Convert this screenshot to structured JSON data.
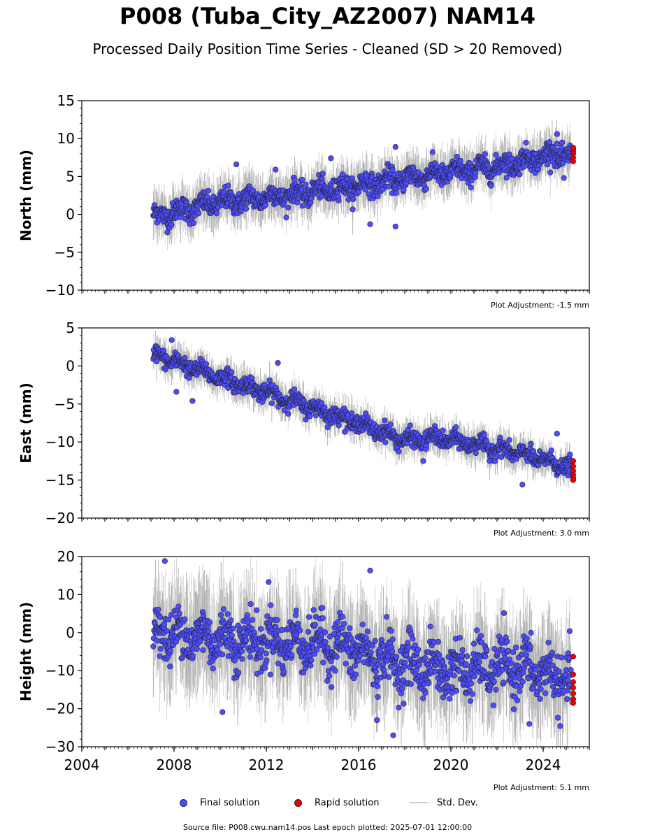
{
  "title": "P008 (Tuba_City_AZ2007) NAM14",
  "subtitle": "Processed Daily Position Time Series - Cleaned (SD > 20 Removed)",
  "colors": {
    "final": "#4b4bff",
    "rapid": "#ee0000",
    "std_dev": "#c8c8c8",
    "std_dev_dense": "#555555",
    "marker_edge": "#222222"
  },
  "legend": {
    "final": "Final solution",
    "rapid": "Rapid solution",
    "std": "Std. Dev."
  },
  "footer": "Source file: P008.cwu.nam14.pos  Last epoch plotted: 2025-07-01 12:00:00",
  "chart_data": [
    {
      "type": "scatter",
      "ylabel": "North (mm)",
      "adjustment": "Plot Adjustment: -1.5 mm",
      "xlim": [
        2004,
        2026
      ],
      "ylim": [
        -10,
        15
      ],
      "yticks": [
        -10,
        -5,
        0,
        5,
        10,
        15
      ],
      "ytick_labels": [
        "−10",
        "−5",
        "0",
        "5",
        "10",
        "15"
      ],
      "series": [
        {
          "name": "Final solution",
          "trend": [
            [
              2007.1,
              -0.3
            ],
            [
              2010,
              1.6
            ],
            [
              2013,
              2.6
            ],
            [
              2016,
              3.8
            ],
            [
              2019,
              5.2
            ],
            [
              2022,
              6.3
            ],
            [
              2024.5,
              8.0
            ],
            [
              2025.3,
              7.4
            ]
          ],
          "x_range": [
            2007.1,
            2025.2
          ],
          "noise_sd": 1.2
        },
        {
          "name": "Rapid solution",
          "x": [
            2025.3,
            2025.3,
            2025.3,
            2025.3,
            2025.3,
            2025.3
          ],
          "y": [
            7.0,
            7.5,
            8.0,
            8.3,
            8.6,
            8.8
          ]
        }
      ],
      "outliers": [
        [
          2010.7,
          6.6
        ],
        [
          2012.4,
          5.9
        ],
        [
          2014.8,
          7.4
        ],
        [
          2016.5,
          -1.3
        ],
        [
          2017.6,
          -1.6
        ],
        [
          2017.6,
          8.9
        ],
        [
          2024.6,
          10.6
        ],
        [
          2024.9,
          4.8
        ]
      ]
    },
    {
      "type": "scatter",
      "ylabel": "East (mm)",
      "adjustment": "Plot Adjustment: 3.0 mm",
      "xlim": [
        2004,
        2026
      ],
      "ylim": [
        -20,
        5
      ],
      "yticks": [
        -20,
        -15,
        -10,
        -5,
        0,
        5
      ],
      "ytick_labels": [
        "−20",
        "−15",
        "−10",
        "−5",
        "0",
        "5"
      ],
      "series": [
        {
          "name": "Final solution",
          "trend": [
            [
              2007.1,
              1.5
            ],
            [
              2010,
              -1.5
            ],
            [
              2013,
              -4.5
            ],
            [
              2016,
              -7.5
            ],
            [
              2018,
              -9.8
            ],
            [
              2019.5,
              -9.5
            ],
            [
              2021,
              -10.3
            ],
            [
              2023,
              -11.5
            ],
            [
              2025.3,
              -13.5
            ]
          ],
          "x_range": [
            2007.1,
            2025.2
          ],
          "noise_sd": 0.9
        },
        {
          "name": "Rapid solution",
          "x": [
            2025.3,
            2025.3,
            2025.3,
            2025.3,
            2025.3,
            2025.3
          ],
          "y": [
            -12.5,
            -13.2,
            -13.8,
            -14.3,
            -14.7,
            -15.0
          ]
        }
      ],
      "outliers": [
        [
          2007.9,
          3.4
        ],
        [
          2008.1,
          -3.4
        ],
        [
          2008.8,
          -4.6
        ],
        [
          2012.5,
          0.4
        ],
        [
          2018.8,
          -12.5
        ],
        [
          2023.1,
          -15.6
        ],
        [
          2024.6,
          -8.9
        ]
      ]
    },
    {
      "type": "scatter",
      "ylabel": "Height (mm)",
      "adjustment": "Plot Adjustment: 5.1 mm",
      "xlim": [
        2004,
        2026
      ],
      "xticks": [
        2004,
        2008,
        2012,
        2016,
        2020,
        2024
      ],
      "xtick_labels": [
        "2004",
        "2008",
        "2012",
        "2016",
        "2020",
        "2024"
      ],
      "ylim": [
        -30,
        20
      ],
      "yticks": [
        -30,
        -20,
        -10,
        0,
        10,
        20
      ],
      "ytick_labels": [
        "−30",
        "−20",
        "−10",
        "0",
        "10",
        "20"
      ],
      "series": [
        {
          "name": "Final solution",
          "trend": [
            [
              2007.1,
              0
            ],
            [
              2011,
              -2
            ],
            [
              2015,
              -3
            ],
            [
              2017,
              -7
            ],
            [
              2020,
              -10
            ],
            [
              2023,
              -9
            ],
            [
              2025.3,
              -13
            ]
          ],
          "x_range": [
            2007.1,
            2025.2
          ],
          "noise_sd": 5.5
        },
        {
          "name": "Rapid solution",
          "x": [
            2025.3,
            2025.3,
            2025.3,
            2025.3,
            2025.3,
            2025.3,
            2025.3
          ],
          "y": [
            -6.3,
            -11,
            -13,
            -14.5,
            -16,
            -17.5,
            -18.5
          ]
        }
      ],
      "outliers": [
        [
          2007.6,
          18.8
        ],
        [
          2012.1,
          13.3
        ],
        [
          2016.5,
          16.3
        ],
        [
          2016.8,
          -23
        ],
        [
          2017.5,
          -27
        ],
        [
          2010.1,
          -20.9
        ],
        [
          2023.4,
          -24
        ]
      ]
    }
  ]
}
